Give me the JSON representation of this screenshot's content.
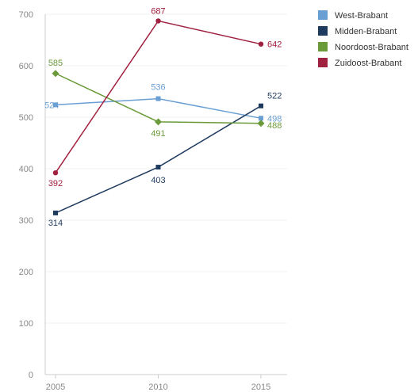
{
  "chart_data": {
    "type": "line",
    "title": "",
    "xlabel": "",
    "ylabel": "",
    "x": [
      "2005",
      "2010",
      "2015"
    ],
    "ylim": [
      0,
      700
    ],
    "yticks": [
      0,
      100,
      200,
      300,
      400,
      500,
      600,
      700
    ],
    "grid": "horizontal",
    "legend_position": "top-right",
    "series": [
      {
        "name": "West-Brabant",
        "values": [
          524,
          536,
          498
        ],
        "labels": [
          "524",
          "536",
          "498"
        ],
        "color": "#6a9fd4",
        "marker": "square"
      },
      {
        "name": "Midden-Brabant",
        "values": [
          314,
          403,
          522
        ],
        "labels": [
          "314",
          "403",
          "522"
        ],
        "color": "#1f3a5f",
        "marker": "square"
      },
      {
        "name": "Noordoost-Brabant",
        "values": [
          585,
          491,
          488
        ],
        "labels": [
          "585",
          "491",
          "488"
        ],
        "color": "#6b9a3a",
        "marker": "diamond"
      },
      {
        "name": "Zuidoost-Brabant",
        "values": [
          392,
          687,
          642
        ],
        "labels": [
          "392",
          "687",
          "642"
        ],
        "color": "#a0203f",
        "marker": "circle"
      }
    ]
  }
}
